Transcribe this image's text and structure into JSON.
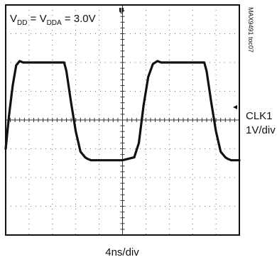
{
  "chart_data": {
    "type": "line",
    "title": {
      "main": "V",
      "sub1": "DD",
      "eq": " = V",
      "sub2": "DDA",
      "rest": " = 3.0V"
    },
    "watermark": "MAX9491 toc07",
    "channel_label": "CLK1",
    "vertical_scale_label": "1V/div",
    "horizontal_scale_label": "4ns/div",
    "grid": true,
    "divisions": {
      "x": 10,
      "y": 8
    },
    "xlim": [
      0,
      40
    ],
    "ylim": [
      -4,
      4
    ],
    "x_unit": "ns",
    "y_unit": "V",
    "series": [
      {
        "x": [
          0,
          0.6,
          1.2,
          1.8,
          2.4,
          3.0,
          4.0,
          6.0,
          8.0,
          10.0,
          10.4,
          11.2,
          12.0,
          12.8,
          13.6,
          14.0,
          14.6,
          16,
          18,
          20,
          22,
          22.8,
          23.6,
          24.4,
          25.2,
          26.0,
          26.6,
          28,
          30,
          32,
          34,
          34.4,
          35.2,
          36.0,
          36.8,
          37.6,
          38.0,
          38.6,
          40
        ],
        "y": [
          -1.0,
          0.2,
          1.2,
          1.9,
          2.05,
          2.0,
          2.0,
          2.0,
          2.0,
          2.0,
          1.7,
          0.6,
          -0.4,
          -1.1,
          -1.3,
          -1.35,
          -1.4,
          -1.4,
          -1.4,
          -1.4,
          -1.3,
          -0.8,
          0.5,
          1.5,
          1.95,
          2.05,
          2.0,
          2.0,
          2.0,
          2.0,
          2.0,
          1.7,
          0.6,
          -0.4,
          -1.1,
          -1.3,
          -1.35,
          -1.4,
          -1.4
        ]
      }
    ]
  }
}
